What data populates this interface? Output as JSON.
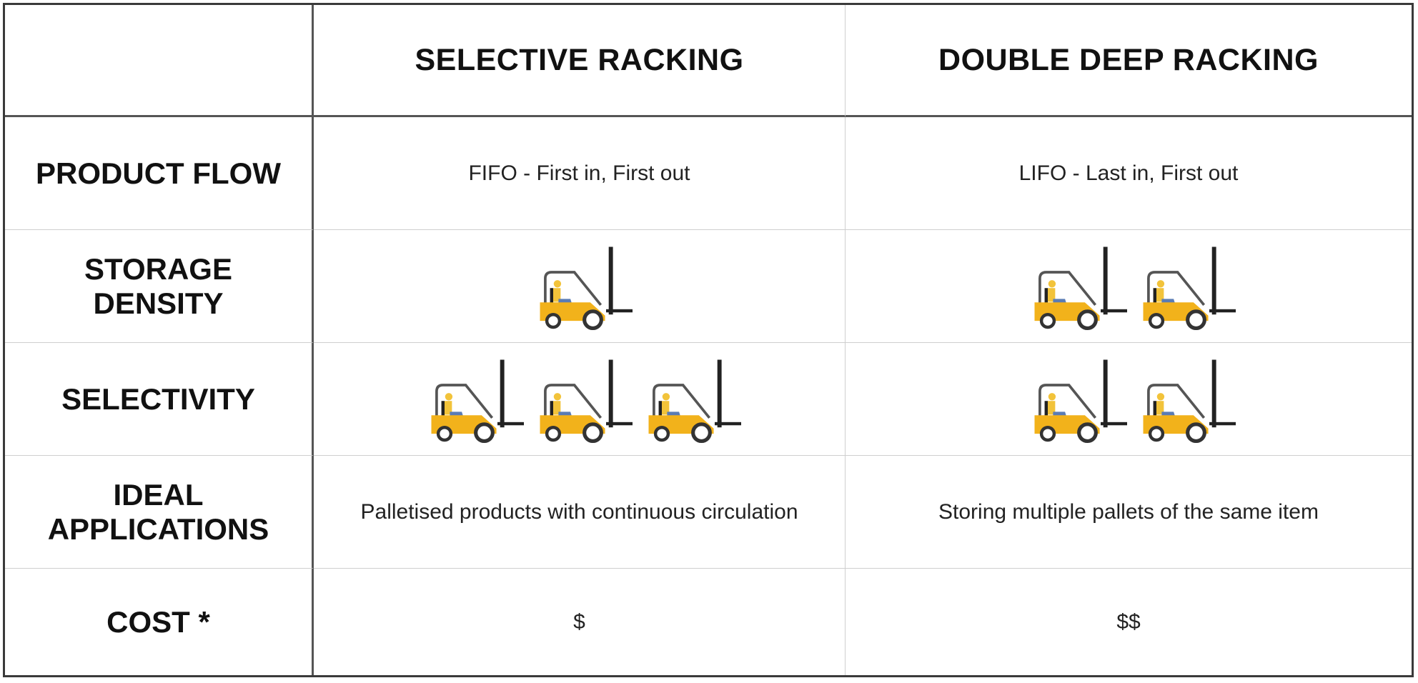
{
  "header": {
    "corner": "",
    "columns": [
      "SELECTIVE RACKING",
      "DOUBLE DEEP RACKING"
    ]
  },
  "rows": [
    {
      "label": "PRODUCT FLOW",
      "values": [
        "FIFO - First in, First out",
        "LIFO - Last in, First out"
      ]
    },
    {
      "label": "STORAGE DENSITY",
      "icon": "forklift-icon",
      "counts": [
        1,
        2
      ]
    },
    {
      "label": "SELECTIVITY",
      "icon": "forklift-icon",
      "counts": [
        3,
        2
      ]
    },
    {
      "label": "IDEAL APPLICATIONS",
      "values": [
        "Palletised products with continuous circulation",
        "Storing multiple pallets of the same item"
      ]
    },
    {
      "label": "COST *",
      "values": [
        "$",
        "$$"
      ]
    }
  ],
  "colors": {
    "forklift_body": "#f2b21b",
    "border": "#3a3a3a"
  }
}
